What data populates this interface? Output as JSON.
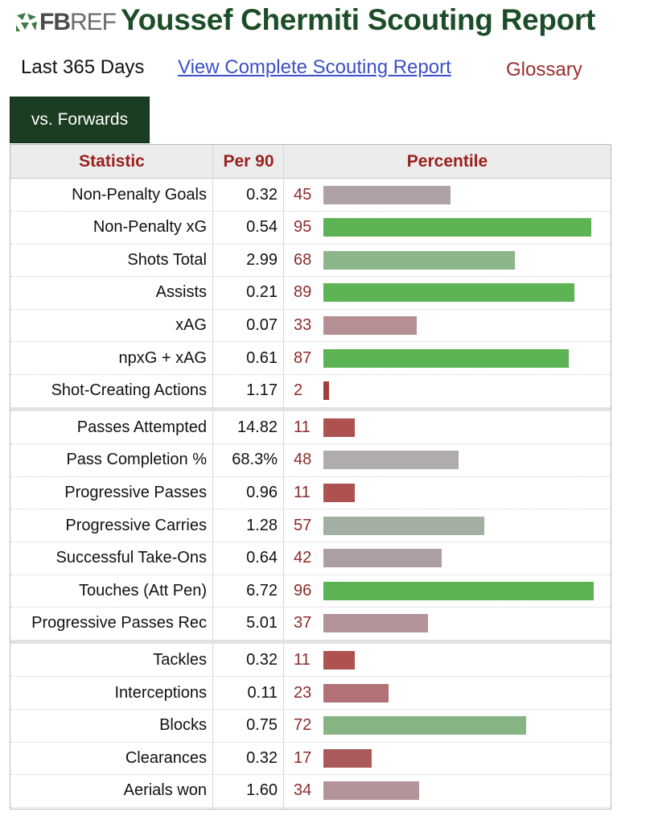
{
  "header": {
    "logo_fb": "FB",
    "logo_ref": "REF",
    "title": "Youssef Chermiti Scouting Report"
  },
  "subnav": {
    "period": "Last 365 Days",
    "full_report_link": "View Complete Scouting Report",
    "glossary_link": "Glossary"
  },
  "tab": {
    "label": "vs. Forwards"
  },
  "table": {
    "columns": [
      "Statistic",
      "Per 90",
      "Percentile"
    ],
    "groups": [
      [
        {
          "stat": "Non-Penalty Goals",
          "per90": "0.32",
          "pct": 45,
          "color": "#aea0a3"
        },
        {
          "stat": "Non-Penalty xG",
          "per90": "0.54",
          "pct": 95,
          "color": "#5cb354"
        },
        {
          "stat": "Shots Total",
          "per90": "2.99",
          "pct": 68,
          "color": "#8db58a"
        },
        {
          "stat": "Assists",
          "per90": "0.21",
          "pct": 89,
          "color": "#5cb354"
        },
        {
          "stat": "xAG",
          "per90": "0.07",
          "pct": 33,
          "color": "#b58f93"
        },
        {
          "stat": "npxG + xAG",
          "per90": "0.61",
          "pct": 87,
          "color": "#5cb354"
        },
        {
          "stat": "Shot-Creating Actions",
          "per90": "1.17",
          "pct": 2,
          "color": "#a13f3f"
        }
      ],
      [
        {
          "stat": "Passes Attempted",
          "per90": "14.82",
          "pct": 11,
          "color": "#ad5151"
        },
        {
          "stat": "Pass Completion %",
          "per90": "68.3%",
          "pct": 48,
          "color": "#b0acac"
        },
        {
          "stat": "Progressive Passes",
          "per90": "0.96",
          "pct": 11,
          "color": "#ad5151"
        },
        {
          "stat": "Progressive Carries",
          "per90": "1.28",
          "pct": 57,
          "color": "#a4afa3"
        },
        {
          "stat": "Successful Take-Ons",
          "per90": "0.64",
          "pct": 42,
          "color": "#ad9ea1"
        },
        {
          "stat": "Touches (Att Pen)",
          "per90": "6.72",
          "pct": 96,
          "color": "#5cb354"
        },
        {
          "stat": "Progressive Passes Rec",
          "per90": "5.01",
          "pct": 37,
          "color": "#b29499"
        }
      ],
      [
        {
          "stat": "Tackles",
          "per90": "0.32",
          "pct": 11,
          "color": "#ad5151"
        },
        {
          "stat": "Interceptions",
          "per90": "0.11",
          "pct": 23,
          "color": "#b27174"
        },
        {
          "stat": "Blocks",
          "per90": "0.75",
          "pct": 72,
          "color": "#86b482"
        },
        {
          "stat": "Clearances",
          "per90": "0.32",
          "pct": 17,
          "color": "#aa5a5a"
        },
        {
          "stat": "Aerials won",
          "per90": "1.60",
          "pct": 34,
          "color": "#b39599"
        }
      ]
    ]
  },
  "colors": {
    "title_green": "#1d4d28",
    "tab_bg": "#1b3d22",
    "header_red": "#9b1f1f",
    "link_blue": "#3b50c9"
  }
}
